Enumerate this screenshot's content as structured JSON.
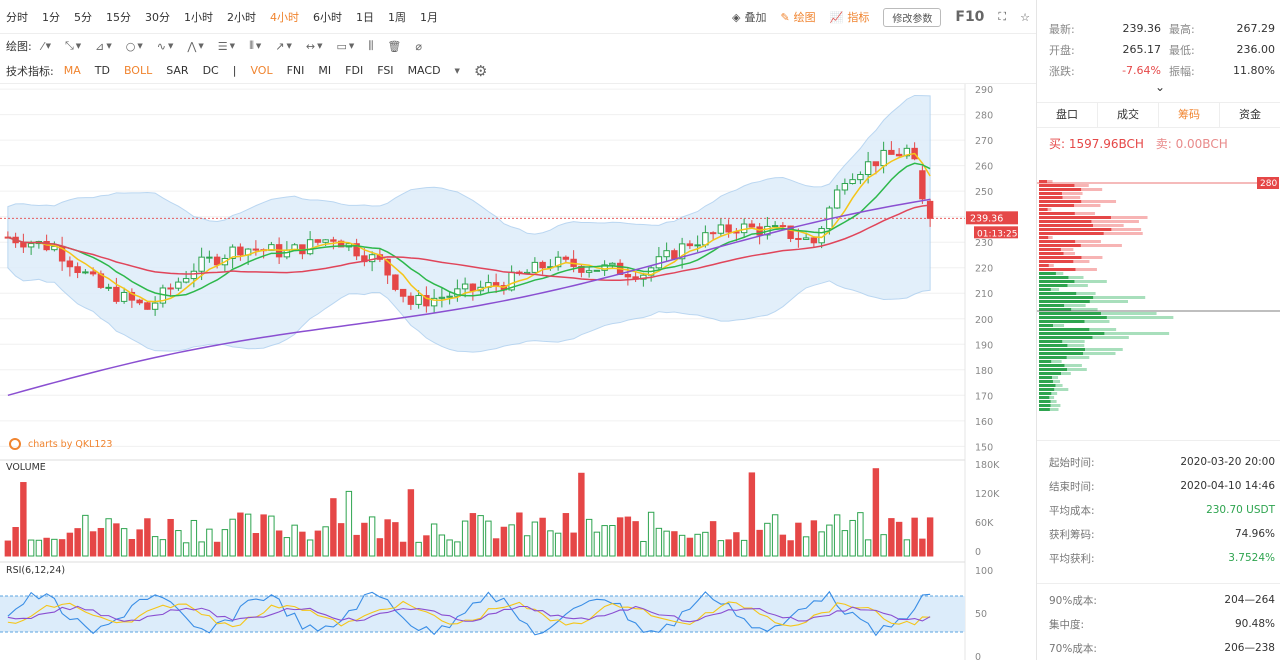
{
  "timeframes": [
    "分时",
    "1分",
    "5分",
    "15分",
    "30分",
    "1小时",
    "2小时",
    "4小时",
    "6小时",
    "1日",
    "1周",
    "1月"
  ],
  "active_timeframe_index": 7,
  "toolbar_right": {
    "overlay": "叠加",
    "draw": "绘图",
    "indicator": "指标",
    "params": "修改参数",
    "f10": "F10"
  },
  "draw_label": "绘图:",
  "indicators_label": "技术指标:",
  "indicators": [
    {
      "label": "MA",
      "active": true
    },
    {
      "label": "TD",
      "active": false
    },
    {
      "label": "BOLL",
      "active": true
    },
    {
      "label": "SAR",
      "active": false
    },
    {
      "label": "DC",
      "active": false
    },
    {
      "label": "|",
      "active": false
    },
    {
      "label": "VOL",
      "active": true
    },
    {
      "label": "FNI",
      "active": false
    },
    {
      "label": "MI",
      "active": false
    },
    {
      "label": "FDI",
      "active": false
    },
    {
      "label": "FSI",
      "active": false
    },
    {
      "label": "MACD",
      "active": false
    }
  ],
  "chart": {
    "watermark": "charts by QKL123",
    "price_axis": [
      "290",
      "280",
      "270",
      "260",
      "250",
      "240",
      "230",
      "220",
      "210",
      "200",
      "190",
      "180",
      "170",
      "160",
      "150"
    ],
    "current_price": "239.36",
    "countdown": "01:13:25",
    "volume_label": "VOLUME",
    "volume_axis": [
      "180K",
      "120K",
      "60K",
      "0"
    ],
    "rsi_label": "RSI(6,12,24)",
    "rsi_axis": [
      "100",
      "50",
      "0"
    ],
    "colors": {
      "up": "#2ea44f",
      "down": "#e54747",
      "ma5": "#f5c518",
      "ma10": "#2db84b",
      "ma30": "#e0455a",
      "ma60": "#8a4fd1",
      "boll_fill": "#dcecfa",
      "boll_line": "#a9cdee"
    }
  },
  "chart_data": {
    "type": "candlestick",
    "interval": "4小时",
    "y_range": [
      150,
      290
    ],
    "last": 239.36
  },
  "quote": {
    "latest_k": "最新:",
    "latest_v": "239.36",
    "high_k": "最高:",
    "high_v": "267.29",
    "open_k": "开盘:",
    "open_v": "265.17",
    "low_k": "最低:",
    "low_v": "236.00",
    "change_k": "涨跌:",
    "change_v": "-7.64%",
    "amp_k": "振幅:",
    "amp_v": "11.80%"
  },
  "tabs": [
    "盘口",
    "成交",
    "筹码",
    "资金"
  ],
  "active_tab_index": 2,
  "buy": "买: 1597.96BCH",
  "sell": "卖: 0.00BCH",
  "depth_marker": "280",
  "stats1": [
    {
      "k": "起始时间:",
      "v": "2020-03-20 20:00",
      "green": false
    },
    {
      "k": "结束时间:",
      "v": "2020-04-10 14:46",
      "green": false
    },
    {
      "k": "平均成本:",
      "v": "230.70 USDT",
      "green": true
    },
    {
      "k": "获利筹码:",
      "v": "74.96%",
      "green": false
    },
    {
      "k": "平均获利:",
      "v": "3.7524%",
      "green": true
    }
  ],
  "stats2": [
    {
      "k": "90%成本:",
      "v": "204—264",
      "green": false
    },
    {
      "k": "集中度:",
      "v": "90.48%",
      "green": false
    },
    {
      "k": "70%成本:",
      "v": "206—238",
      "green": false
    }
  ]
}
